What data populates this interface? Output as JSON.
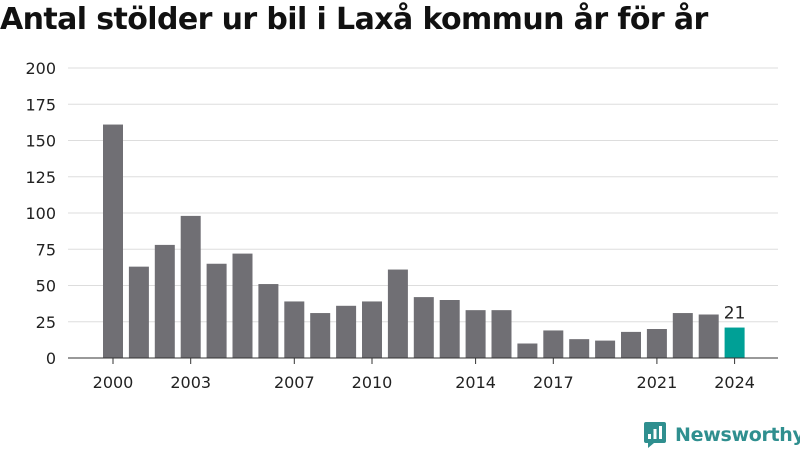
{
  "title": "Antal stölder ur bil i Laxå kommun år för år",
  "brand": {
    "name": "Newsworthy"
  },
  "colors": {
    "bar": "#706f74",
    "highlight": "#00a096",
    "grid": "#dddddd",
    "text": "#222222",
    "brand": "#2f8f8f"
  },
  "chart_data": {
    "type": "bar",
    "categories": [
      "2000",
      "2001",
      "2002",
      "2003",
      "2004",
      "2005",
      "2006",
      "2007",
      "2008",
      "2009",
      "2010",
      "2011",
      "2012",
      "2013",
      "2014",
      "2015",
      "2016",
      "2017",
      "2018",
      "2019",
      "2020",
      "2021",
      "2022",
      "2023",
      "2024"
    ],
    "values": [
      161,
      63,
      78,
      98,
      65,
      72,
      51,
      39,
      31,
      36,
      39,
      61,
      42,
      40,
      33,
      33,
      10,
      19,
      13,
      12,
      18,
      20,
      31,
      30,
      21
    ],
    "xtick_labels": [
      "2000",
      "2003",
      "2007",
      "2010",
      "2014",
      "2017",
      "2021",
      "2024"
    ],
    "yticks": [
      0,
      25,
      50,
      75,
      100,
      125,
      150,
      175,
      200
    ],
    "ylim": [
      0,
      200
    ],
    "highlight_category": "2024",
    "data_labels": [
      {
        "category": "2024",
        "text": "21"
      }
    ],
    "xlabel": "",
    "ylabel": "",
    "grid": true
  }
}
